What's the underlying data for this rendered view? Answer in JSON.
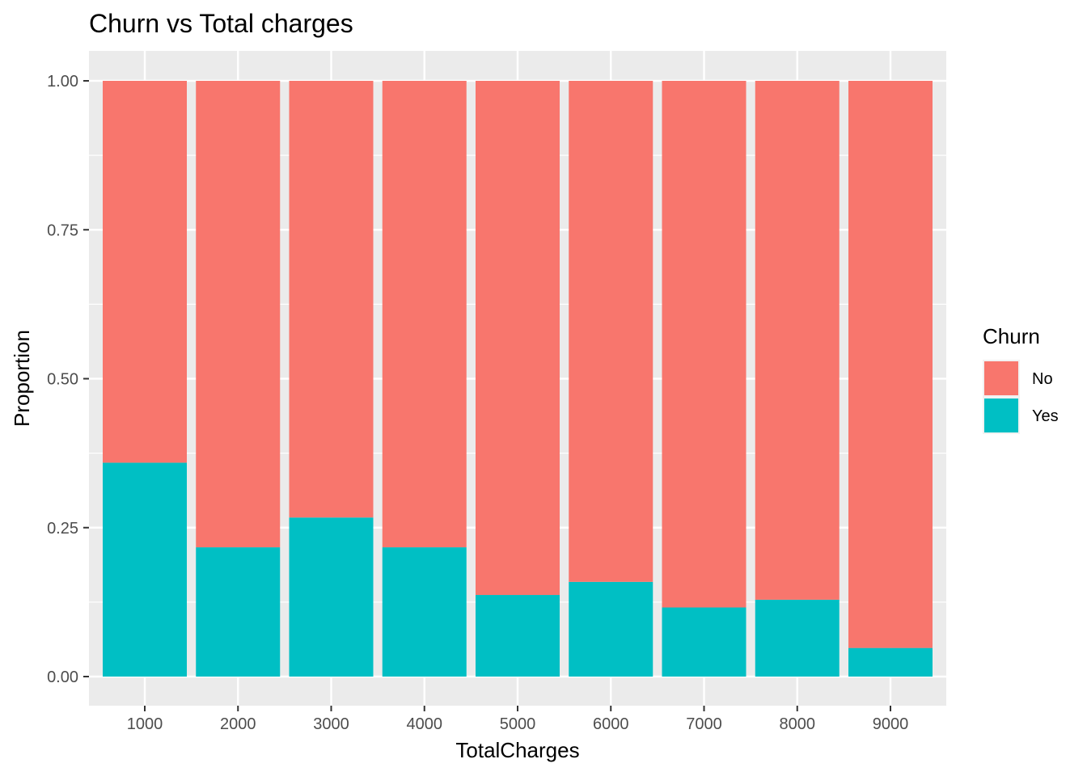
{
  "chart_data": {
    "type": "bar",
    "stacked": true,
    "title": "Churn vs Total charges",
    "xlabel": "TotalCharges",
    "ylabel": "Proportion",
    "categories": [
      "1000",
      "2000",
      "3000",
      "4000",
      "5000",
      "6000",
      "7000",
      "8000",
      "9000"
    ],
    "y_ticks": [
      "0.00",
      "0.25",
      "0.50",
      "0.75",
      "1.00"
    ],
    "ylim": [
      0,
      1
    ],
    "grid": true,
    "legend": {
      "title": "Churn",
      "position": "right"
    },
    "series": [
      {
        "name": "Yes",
        "color": "#00BFC4",
        "values": [
          0.359,
          0.217,
          0.267,
          0.217,
          0.137,
          0.159,
          0.116,
          0.129,
          0.048
        ]
      },
      {
        "name": "No",
        "color": "#F8766D",
        "values": [
          0.641,
          0.783,
          0.733,
          0.783,
          0.863,
          0.841,
          0.884,
          0.871,
          0.952
        ]
      }
    ]
  }
}
